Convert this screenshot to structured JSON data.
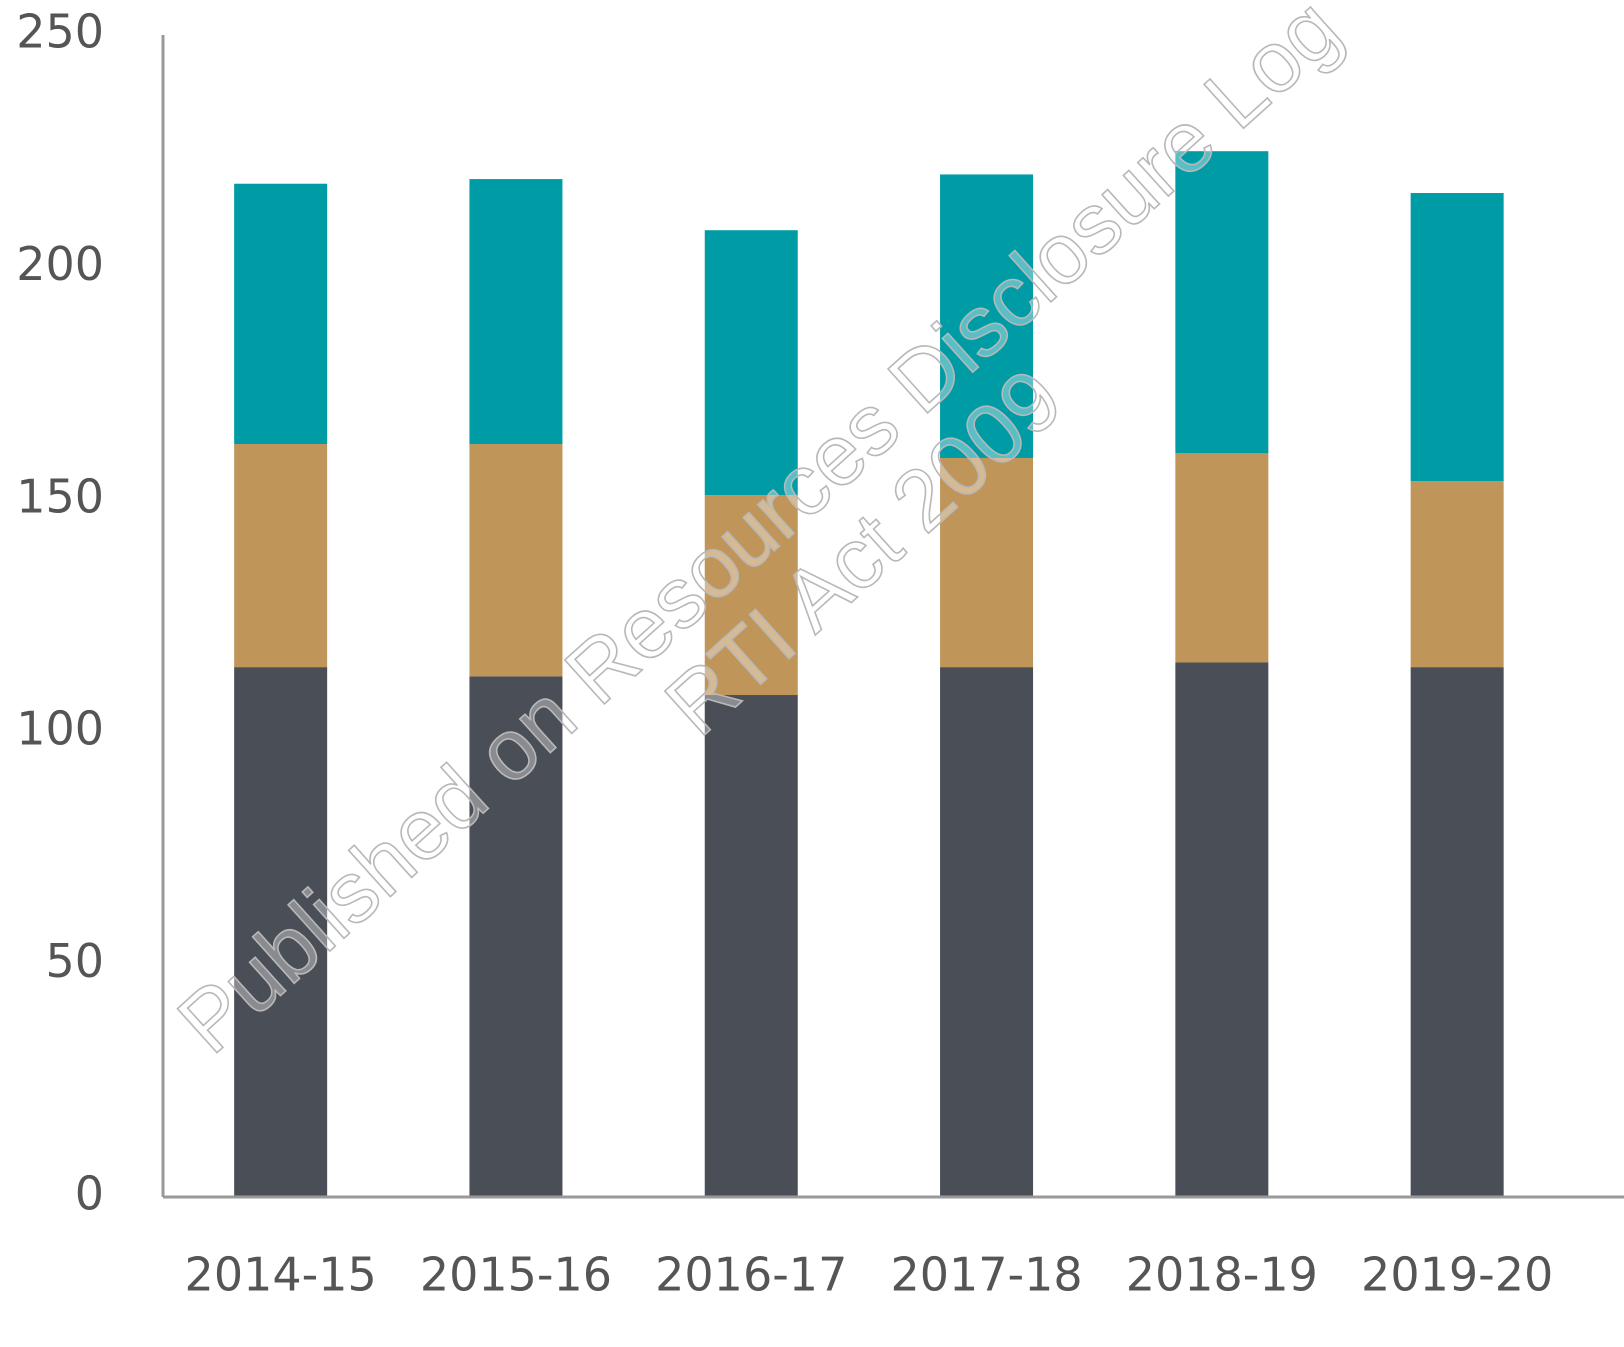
{
  "chart_data": {
    "type": "stacked_bar",
    "categories": [
      "2014-15",
      "2015-16",
      "2016-17",
      "2017-18",
      "2018-19",
      "2019-20"
    ],
    "series": [
      {
        "color": "#4a4e56",
        "values": [
          114,
          112,
          108,
          114,
          115,
          114
        ]
      },
      {
        "color": "#c0955a",
        "values": [
          48,
          50,
          43,
          45,
          45,
          40
        ]
      },
      {
        "color": "#009ca6",
        "values": [
          56,
          57,
          57,
          61,
          65,
          62
        ]
      }
    ],
    "ylim": [
      0,
      250
    ],
    "yticks": [
      0,
      50,
      100,
      150,
      200,
      250
    ],
    "grid": false,
    "watermark": [
      "Published on Resources Disclosure Log",
      "RTI Act 2009"
    ]
  }
}
